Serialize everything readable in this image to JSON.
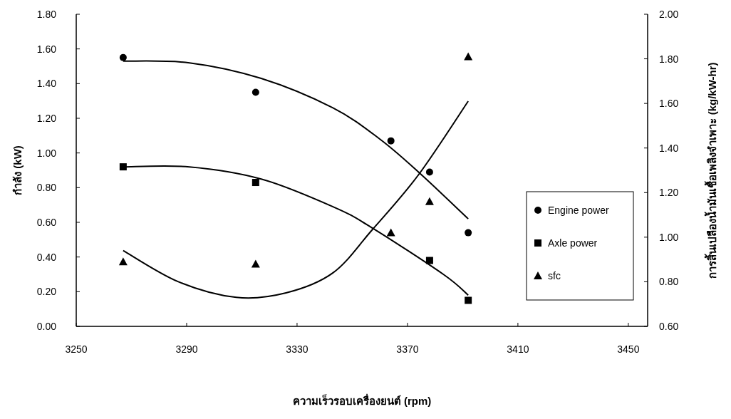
{
  "chart_data": {
    "type": "scatter",
    "xlabel": "ความเร็วรอบเครื่องยนต์ (rpm)",
    "ylabel": "กำลัง (kW)",
    "y2label": "การสิ้นเปลืองน้ำมันเชื้อเพลิงจำเพาะ (kg/kW-hr)",
    "xlim": [
      3250,
      3457
    ],
    "xticks": [
      3250,
      3290,
      3330,
      3370,
      3410,
      3450
    ],
    "ylim": [
      0,
      1.8
    ],
    "yticks": [
      {
        "value": 0,
        "label": "0.00"
      },
      {
        "value": 0.2,
        "label": "0.20"
      },
      {
        "value": 0.4,
        "label": "0.40"
      },
      {
        "value": 0.6,
        "label": "0.60"
      },
      {
        "value": 0.8,
        "label": "0.80"
      },
      {
        "value": 1,
        "label": "1.00"
      },
      {
        "value": 1.2,
        "label": "1.20"
      },
      {
        "value": 1.4,
        "label": "1.40"
      },
      {
        "value": 1.6,
        "label": "1.60"
      },
      {
        "value": 1.8,
        "label": "1.80"
      }
    ],
    "y2lim": [
      0.6,
      2.0
    ],
    "y2ticks": [
      {
        "value": 0.6,
        "label": "0.60"
      },
      {
        "value": 0.8,
        "label": "0.80"
      },
      {
        "value": 1,
        "label": "1.00"
      },
      {
        "value": 1.2,
        "label": "1.20"
      },
      {
        "value": 1.4,
        "label": "1.40"
      },
      {
        "value": 1.6,
        "label": "1.60"
      },
      {
        "value": 1.8,
        "label": "1.80"
      },
      {
        "value": 2,
        "label": "2.00"
      }
    ],
    "grid": false,
    "legend": "right",
    "series": [
      {
        "name": "Engine power",
        "color": "#000000",
        "type": "scatter",
        "marker": "circle",
        "x": [
          3267,
          3315,
          3364,
          3378,
          3392
        ],
        "values": [
          1.55,
          1.35,
          1.07,
          0.89,
          0.54
        ]
      },
      {
        "name": "Axle power",
        "color": "#000000",
        "type": "scatter",
        "marker": "square",
        "x": [
          3267,
          3315,
          3364,
          3378,
          3392
        ],
        "values": [
          0.92,
          0.83,
          null,
          0.38,
          0.15
        ]
      },
      {
        "name": "sfc",
        "color": "#000000",
        "type": "scatter",
        "marker": "triangle",
        "axis": "y2",
        "x": [
          3267,
          3315,
          3364,
          3378,
          3392
        ],
        "values": [
          0.89,
          0.88,
          1.02,
          1.16,
          1.81
        ]
      },
      {
        "color": "#000000",
        "type": "line",
        "marker": "none",
        "x": [
          3267,
          3291,
          3317,
          3343,
          3360,
          3374,
          3392
        ],
        "values": [
          1.53,
          1.52,
          1.43,
          1.26,
          1.08,
          0.89,
          0.62
        ]
      },
      {
        "color": "#000000",
        "type": "line",
        "marker": "none",
        "x": [
          3267,
          3291,
          3317,
          3343,
          3357,
          3383,
          3392
        ],
        "values": [
          0.92,
          0.92,
          0.85,
          0.69,
          0.57,
          0.3,
          0.18
        ]
      },
      {
        "color": "#000000",
        "type": "line",
        "marker": "none",
        "axis": "y2",
        "x": [
          3267,
          3287,
          3308,
          3326,
          3343,
          3357,
          3374,
          3392
        ],
        "values": [
          0.94,
          0.8,
          0.73,
          0.75,
          0.84,
          1.03,
          1.28,
          1.61
        ]
      }
    ]
  }
}
